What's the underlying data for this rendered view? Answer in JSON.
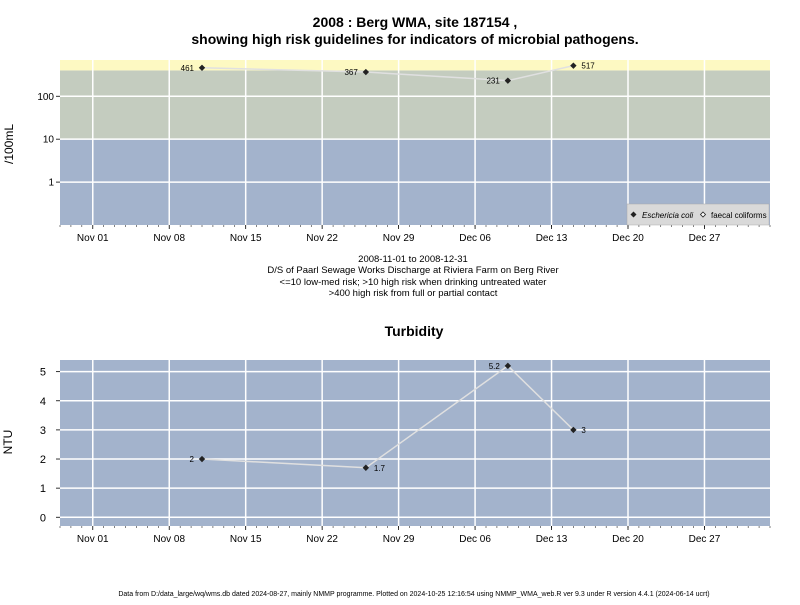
{
  "colors": {
    "panel_bg": "#a3b3cc",
    "band_low": "#a3b3cc",
    "band_mid": "#c4ccbf",
    "band_high": "#fdf9c2",
    "grid": "#ffffff",
    "line": "#e0e0e0",
    "marker": "#222222"
  },
  "chart_data": [
    {
      "type": "line",
      "title": "2008 : Berg WMA, site 187154 ,",
      "subtitle": "showing high risk guidelines for indicators of microbial pathogens.",
      "ylabel": "/100mL",
      "xlabel": "",
      "y_scale": "log",
      "ylim": [
        0.1,
        700
      ],
      "y_ticks": [
        1,
        10,
        100
      ],
      "y_tick_labels": [
        "1",
        "10",
        "100"
      ],
      "x_range": [
        "2008-10-29",
        "2009-01-02"
      ],
      "x_ticks": [
        "2008-11-01",
        "2008-11-08",
        "2008-11-15",
        "2008-11-22",
        "2008-11-29",
        "2008-12-06",
        "2008-12-13",
        "2008-12-20",
        "2008-12-27"
      ],
      "x_tick_labels": [
        "Nov 01",
        "Nov 08",
        "Nov 15",
        "Nov 22",
        "Nov 29",
        "Dec 06",
        "Dec 13",
        "Dec 20",
        "Dec 27"
      ],
      "grid": true,
      "bands": [
        {
          "from": 0.1,
          "to": 10
        },
        {
          "from": 10,
          "to": 400
        },
        {
          "from": 400,
          "to": 700
        }
      ],
      "series": [
        {
          "name": "Eschericia coli",
          "marker": "filled-diamond",
          "x": [
            "2008-11-11",
            "2008-11-26",
            "2008-12-09",
            "2008-12-15"
          ],
          "values": [
            461,
            367,
            231,
            517
          ],
          "labels": [
            "461",
            "367",
            "231",
            "517"
          ]
        }
      ],
      "legend": {
        "placement": "bottom-right",
        "entries": [
          {
            "name": "Eschericia coli",
            "marker": "filled-diamond"
          },
          {
            "name": "faecal coliforms",
            "marker": "open-diamond"
          }
        ]
      },
      "notes": [
        "2008-11-01 to 2008-12-31",
        "D/S of Paarl Sewage Works Discharge at Riviera Farm on Berg River",
        "<=10 low-med risk; >10 high risk when drinking untreated water",
        ">400 high risk from full or partial contact"
      ]
    },
    {
      "type": "line",
      "title": "Turbidity",
      "ylabel": "NTU",
      "xlabel": "",
      "ylim": [
        -0.3,
        5.4
      ],
      "y_ticks": [
        0,
        1,
        2,
        3,
        4,
        5
      ],
      "y_tick_labels": [
        "0",
        "1",
        "2",
        "3",
        "4",
        "5"
      ],
      "x_range": [
        "2008-10-29",
        "2009-01-02"
      ],
      "x_ticks": [
        "2008-11-01",
        "2008-11-08",
        "2008-11-15",
        "2008-11-22",
        "2008-11-29",
        "2008-12-06",
        "2008-12-13",
        "2008-12-20",
        "2008-12-27"
      ],
      "x_tick_labels": [
        "Nov 01",
        "Nov 08",
        "Nov 15",
        "Nov 22",
        "Nov 29",
        "Dec 06",
        "Dec 13",
        "Dec 20",
        "Dec 27"
      ],
      "grid": true,
      "series": [
        {
          "x": [
            "2008-11-11",
            "2008-11-26",
            "2008-12-09",
            "2008-12-15"
          ],
          "values": [
            2,
            1.7,
            5.2,
            3
          ],
          "labels": [
            "2",
            "1.7",
            "5.2",
            "3"
          ]
        }
      ]
    }
  ],
  "footer": "Data from D:/data_large/wq/wms.db dated 2024-08-27, mainly NMMP programme. Plotted on 2024-10-25 12:16:54 using NMMP_WMA_web.R ver 9.3 under R version 4.4.1 (2024-06-14 ucrt)"
}
